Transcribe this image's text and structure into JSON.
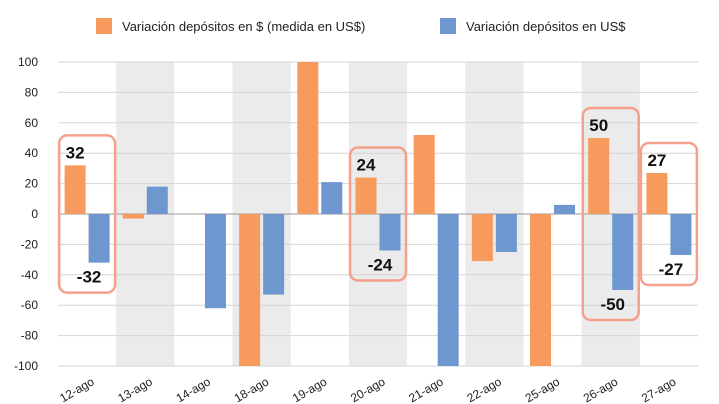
{
  "chart_data": {
    "type": "bar",
    "title": "",
    "xlabel": "",
    "ylabel": "",
    "ylim": [
      -100,
      100
    ],
    "yticks": [
      100,
      80,
      60,
      40,
      20,
      0,
      -20,
      -40,
      -60,
      -80,
      -100
    ],
    "categories": [
      "12-ago",
      "13-ago",
      "14-ago",
      "18-ago",
      "19-ago",
      "20-ago",
      "21-ago",
      "22-ago",
      "25-ago",
      "26-ago",
      "27-ago"
    ],
    "legend_position": "top",
    "grid": true,
    "series": [
      {
        "name": "Variación depósitos en $ (medida en US$)",
        "color": "#F79A5E",
        "values": [
          32,
          -3,
          0,
          -100,
          100,
          24,
          52,
          -31,
          -100,
          50,
          27
        ]
      },
      {
        "name": "Variación depósitos en US$",
        "color": "#6E97D0",
        "values": [
          -32,
          18,
          -62,
          -53,
          21,
          -24,
          -100,
          -25,
          6,
          -50,
          -27
        ]
      }
    ],
    "highlighted_labels": [
      {
        "category": "12-ago",
        "series1_label": "32",
        "series2_label": "-32"
      },
      {
        "category": "20-ago",
        "series1_label": "24",
        "series2_label": "-24"
      },
      {
        "category": "26-ago",
        "series1_label": "50",
        "series2_label": "-50"
      },
      {
        "category": "27-ago",
        "series1_label": "27",
        "series2_label": "-27"
      }
    ],
    "highlight_box_color": "#F4A08A",
    "shaded_band_color": "#EBEBEB"
  }
}
